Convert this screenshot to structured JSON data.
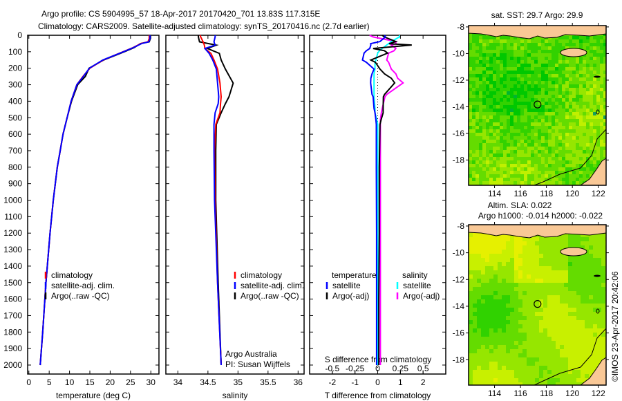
{
  "title": {
    "line1": "Argo profile: CS 5904995_57 18-Apr-2017 20170420_701 13.83S 117.315E",
    "line2": "Climatology: CARS2009. Satellite-adjusted climatology: synTS_20170416.nc (2.7d earlier)"
  },
  "colors": {
    "climatology": "#ff0000",
    "satellite": "#0000ff",
    "argo": "#000000",
    "sal_satellite": "#00ffff",
    "sal_argo": "#ff00ff",
    "land": "#f9c896"
  },
  "chart_data": [
    {
      "type": "line",
      "xlabel": "temperature (deg C)",
      "ylabel": "",
      "xlim": [
        -0.3,
        32
      ],
      "ylim": [
        2050,
        0
      ],
      "x_ticks": [
        0,
        5,
        10,
        15,
        20,
        25,
        30
      ],
      "y_ticks": [
        0,
        100,
        200,
        300,
        400,
        500,
        600,
        700,
        800,
        900,
        1000,
        1100,
        1200,
        1300,
        1400,
        1500,
        1600,
        1700,
        1800,
        1900,
        2000
      ],
      "depth": [
        0,
        20,
        40,
        50,
        75,
        100,
        150,
        200,
        250,
        300,
        400,
        500,
        600,
        700,
        800,
        1000,
        1200,
        1500,
        1800,
        2000
      ],
      "series": [
        {
          "name": "climatology",
          "values": [
            29.6,
            29.6,
            29.3,
            27.6,
            25.6,
            23.2,
            18.3,
            15.0,
            13.3,
            11.8,
            10.4,
            9.4,
            8.4,
            7.7,
            7.0,
            6.0,
            5.2,
            4.2,
            3.4,
            2.8
          ]
        },
        {
          "name": "satellite-adj. clim.",
          "values": [
            29.8,
            29.8,
            29.5,
            27.8,
            25.7,
            23.3,
            18.2,
            14.9,
            13.4,
            11.8,
            10.4,
            9.4,
            8.4,
            7.7,
            7.0,
            6.0,
            5.2,
            4.2,
            3.4,
            2.8
          ]
        },
        {
          "name": "Argo(..raw -QC)",
          "values": [
            29.9,
            29.9,
            29.6,
            27.5,
            25.9,
            23.5,
            18.4,
            14.8,
            13.9,
            12.0,
            10.5,
            9.4,
            8.4,
            7.7,
            7.0,
            6.0,
            5.2,
            4.2,
            3.4,
            2.8
          ]
        }
      ],
      "legend": [
        "climatology",
        "satellite-adj. clim.",
        "Argo(..raw -QC)"
      ],
      "legend_position": "bottom-center"
    },
    {
      "type": "line",
      "xlabel": "salinity",
      "xlim": [
        33.8,
        36.1
      ],
      "ylim": [
        2050,
        0
      ],
      "x_ticks": [
        "34",
        "34.5",
        "35",
        "35.5",
        "36"
      ],
      "depth": [
        0,
        10,
        40,
        60,
        80,
        110,
        150,
        205,
        290,
        373,
        415,
        470,
        541,
        700,
        1000,
        1500,
        2000
      ],
      "series": [
        {
          "name": "climatology",
          "values": [
            34.37,
            34.38,
            34.42,
            34.44,
            34.45,
            34.55,
            34.6,
            34.66,
            34.7,
            34.72,
            34.71,
            34.7,
            34.63,
            34.61,
            34.62,
            34.66,
            34.72
          ]
        },
        {
          "name": "satellite-adj. clim.",
          "values": [
            34.62,
            34.62,
            34.6,
            34.62,
            34.45,
            34.52,
            34.58,
            34.64,
            34.66,
            34.68,
            34.67,
            34.62,
            34.6,
            34.6,
            34.61,
            34.66,
            34.72
          ]
        },
        {
          "name": "Argo(..raw -QC)",
          "values": [
            34.34,
            34.34,
            34.36,
            34.64,
            34.49,
            34.69,
            34.72,
            34.79,
            34.92,
            34.85,
            34.79,
            34.72,
            34.64,
            34.63,
            34.63,
            34.67,
            34.72
          ]
        }
      ],
      "legend": [
        "climatology",
        "satellite-adj. clim.",
        "Argo(..raw -QC)"
      ],
      "legend_position": "bottom-center",
      "annotation": [
        "Argo Australia",
        "PI: Susan Wijffels"
      ]
    },
    {
      "type": "line",
      "xlabel": "T difference from climatology",
      "x2label": "S difference from climatology",
      "xlim": [
        -3,
        3
      ],
      "x2lim": [
        -0.75,
        0.75
      ],
      "ylim": [
        2050,
        0
      ],
      "x_ticks": [
        "-2",
        "-1",
        "0",
        "1",
        "2"
      ],
      "x2_ticks": [
        "-0.5",
        "-0.25",
        "0",
        "0.25",
        "0.5"
      ],
      "depth": [
        0,
        10,
        38,
        51,
        59,
        80,
        94,
        108,
        150,
        164,
        205,
        234,
        261,
        289,
        359,
        373,
        443,
        470,
        513,
        541,
        800,
        1200,
        1600,
        2000
      ],
      "series": [
        {
          "name": "temperature satellite",
          "values": [
            0.3,
            0.34,
            0.1,
            -0.31,
            -0.3,
            -0.35,
            -0.5,
            -0.6,
            -0.67,
            -0.5,
            -0.16,
            -0.25,
            -0.3,
            -0.31,
            -0.25,
            -0.2,
            -0.16,
            -0.12,
            -0.08,
            -0.06,
            -0.06,
            -0.05,
            -0.05,
            -0.05
          ]
        },
        {
          "name": "temperature Argo(-adj)",
          "values": [
            0.2,
            0.29,
            0.8,
            0.5,
            1.5,
            -0.2,
            0.3,
            0.44,
            -0.3,
            -0.1,
            0.1,
            0.3,
            0.6,
            0.75,
            0.3,
            0.25,
            0.24,
            0.24,
            0.15,
            0.1,
            0.07,
            0.07,
            0.05,
            0.05
          ]
        },
        {
          "name": "salinity satellite",
          "values": [
            0.24,
            0.24,
            0.15,
            0.12,
            0.1,
            0.05,
            0.02,
            0.0,
            -0.02,
            -0.03,
            -0.03,
            -0.04,
            -0.04,
            -0.04,
            -0.04,
            -0.04,
            -0.03,
            -0.03,
            -0.01,
            0.0,
            0.0,
            0.0,
            0.0,
            0.0
          ]
        },
        {
          "name": "salinity Argo(-adj)",
          "values": [
            -0.09,
            -0.05,
            0.2,
            0.2,
            0.15,
            0.2,
            0.18,
            0.12,
            0.1,
            0.12,
            0.15,
            0.2,
            0.22,
            0.28,
            0.1,
            0.08,
            0.05,
            0.04,
            0.03,
            0.03,
            0.03,
            0.03,
            0.03,
            0.03
          ]
        }
      ],
      "legend": {
        "temperature_heading": "temperature",
        "salinity_heading": "salinity",
        "t_satellite": "satellite",
        "t_argo": "Argo(-adj)",
        "s_satellite": "satellite",
        "s_argo": "Argo(-adj)"
      },
      "legend_position": "bottom-center"
    },
    {
      "type": "heatmap",
      "title": "sat. SST: 29.7 Argo: 29.9",
      "lon_ticks": [
        "114",
        "116",
        "118",
        "120",
        "122"
      ],
      "lat_ticks": [
        "-8",
        "-10",
        "-12",
        "-14",
        "-16",
        "-18"
      ],
      "lon_range": [
        112,
        122.6
      ],
      "lat_range": [
        -19.9,
        -7.9
      ],
      "marker": {
        "lon": 117.315,
        "lat": -13.83
      }
    },
    {
      "type": "heatmap",
      "title": "Altim. SLA: 0.022",
      "subtitle": "Argo h1000: -0.014 h2000: -0.022",
      "lon_ticks": [
        "114",
        "116",
        "118",
        "120",
        "122"
      ],
      "lat_ticks": [
        "-8",
        "-10",
        "-12",
        "-14",
        "-16",
        "-18"
      ],
      "lon_range": [
        112,
        122.6
      ],
      "lat_range": [
        -19.9,
        -7.9
      ],
      "marker": {
        "lon": 117.315,
        "lat": -13.83
      }
    }
  ],
  "footer": {
    "timestamp": "©IMOS 23-Apr-2017 20:42:06"
  }
}
